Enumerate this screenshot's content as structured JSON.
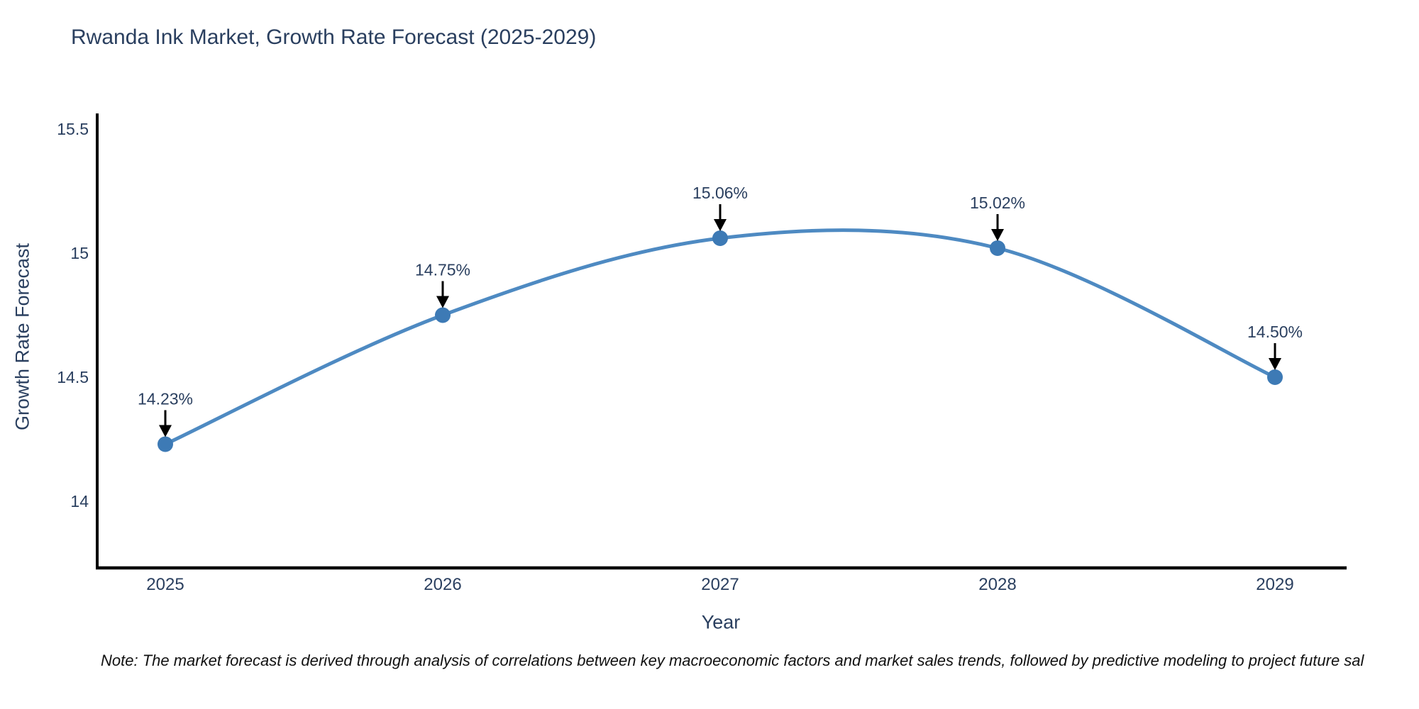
{
  "note": {
    "text": "Note: The market forecast is derived through analysis of correlations between key macroeconomic factors and market sales trends, followed by predictive modeling to project future sal"
  },
  "chart_data": {
    "type": "line",
    "title": "Rwanda Ink Market, Growth Rate Forecast (2025-2029)",
    "xlabel": "Year",
    "ylabel": "Growth Rate Forecast",
    "categories": [
      "2025",
      "2026",
      "2027",
      "2028",
      "2029"
    ],
    "values": [
      14.23,
      14.75,
      15.06,
      15.02,
      14.5
    ],
    "point_labels": [
      "14.23%",
      "14.75%",
      "15.06%",
      "15.02%",
      "14.50%"
    ],
    "ytick_values": [
      15.5,
      15,
      14.5,
      14
    ],
    "ytick_labels": [
      "15.5",
      "15",
      "14.5",
      "14"
    ],
    "ylim": [
      13.73,
      15.56
    ],
    "grid": false,
    "legend": false,
    "line_color": "#4e8ac2",
    "marker_color": "#3d7ab5",
    "axis_color": "#000000",
    "arrow_color": "#000000",
    "text_color": "#2a3f5f"
  }
}
